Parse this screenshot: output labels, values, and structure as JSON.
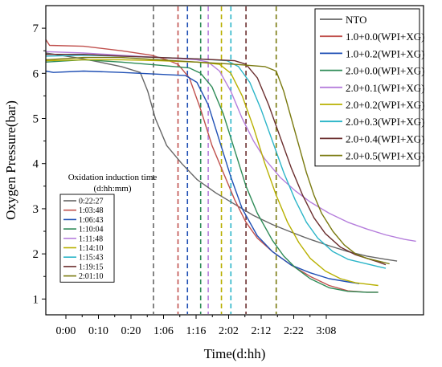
{
  "chart_data": {
    "type": "line",
    "xlabel": "Time(d:hh)",
    "ylabel": "Oxygen Pressure(bar)",
    "x_tick_labels": [
      "0:00",
      "0:10",
      "0:20",
      "1:06",
      "1:16",
      "2:02",
      "2:12",
      "2:22",
      "3:08"
    ],
    "y_ticks": [
      1,
      2,
      3,
      4,
      5,
      6,
      7
    ],
    "xlim": [
      0,
      100
    ],
    "ylim": [
      0.65,
      7.5
    ],
    "grid": false,
    "legend": {
      "placement": "top-right"
    },
    "inset_table": {
      "title_line1": "Oxidation induction time",
      "title_line2": "(d:hh:mm)",
      "rows": [
        {
          "label": "0:22:27",
          "color": "#666666"
        },
        {
          "label": "1:03:48",
          "color": "#c0504d"
        },
        {
          "label": "1:06:43",
          "color": "#1f4fb4"
        },
        {
          "label": "1:10:04",
          "color": "#2e8b57"
        },
        {
          "label": "1:11:48",
          "color": "#b57edc"
        },
        {
          "label": "1:14:10",
          "color": "#b8b000"
        },
        {
          "label": "1:15:43",
          "color": "#2bb5c8"
        },
        {
          "label": "1:19:15",
          "color": "#6b2f2f"
        },
        {
          "label": "2:01:10",
          "color": "#7a7a10"
        }
      ]
    },
    "series": [
      {
        "name": "NTO",
        "color": "#666666",
        "induction_x": 28.5,
        "points": [
          [
            0,
            6.45
          ],
          [
            10,
            6.32
          ],
          [
            20,
            6.15
          ],
          [
            25,
            6.02
          ],
          [
            27,
            5.6
          ],
          [
            29,
            5.0
          ],
          [
            32,
            4.4
          ],
          [
            36,
            4.0
          ],
          [
            40,
            3.65
          ],
          [
            45,
            3.35
          ],
          [
            50,
            3.1
          ],
          [
            55,
            2.85
          ],
          [
            60,
            2.65
          ],
          [
            65,
            2.48
          ],
          [
            70,
            2.32
          ],
          [
            75,
            2.18
          ],
          [
            80,
            2.05
          ],
          [
            85,
            1.95
          ],
          [
            90,
            1.88
          ],
          [
            93,
            1.84
          ]
        ]
      },
      {
        "name": "1.0+0.0(WPI+XG)",
        "color": "#c0504d",
        "induction_x": 35,
        "points": [
          [
            0,
            6.75
          ],
          [
            1,
            6.62
          ],
          [
            10,
            6.6
          ],
          [
            20,
            6.5
          ],
          [
            28,
            6.4
          ],
          [
            32,
            6.3
          ],
          [
            35,
            6.2
          ],
          [
            38,
            5.9
          ],
          [
            41,
            5.2
          ],
          [
            44,
            4.4
          ],
          [
            47,
            3.8
          ],
          [
            50,
            3.2
          ],
          [
            53,
            2.7
          ],
          [
            56,
            2.35
          ],
          [
            60,
            2.05
          ],
          [
            65,
            1.75
          ],
          [
            70,
            1.5
          ],
          [
            75,
            1.3
          ],
          [
            80,
            1.18
          ],
          [
            85,
            1.15
          ],
          [
            88,
            1.15
          ]
        ]
      },
      {
        "name": "1.0+0.2(WPI+XG)",
        "color": "#1f4fb4",
        "induction_x": 37.5,
        "points": [
          [
            0,
            6.05
          ],
          [
            2,
            6.02
          ],
          [
            10,
            6.05
          ],
          [
            20,
            6.02
          ],
          [
            30,
            5.98
          ],
          [
            37,
            5.95
          ],
          [
            40,
            5.8
          ],
          [
            43,
            5.3
          ],
          [
            46,
            4.5
          ],
          [
            49,
            3.7
          ],
          [
            52,
            3.0
          ],
          [
            56,
            2.4
          ],
          [
            60,
            2.05
          ],
          [
            65,
            1.75
          ],
          [
            70,
            1.58
          ],
          [
            75,
            1.45
          ],
          [
            80,
            1.38
          ],
          [
            83,
            1.34
          ]
        ]
      },
      {
        "name": "2.0+0.0(WPI+XG)",
        "color": "#2e8b57",
        "induction_x": 41,
        "points": [
          [
            0,
            6.25
          ],
          [
            10,
            6.3
          ],
          [
            20,
            6.25
          ],
          [
            30,
            6.18
          ],
          [
            38,
            6.12
          ],
          [
            41,
            6.0
          ],
          [
            44,
            5.7
          ],
          [
            47,
            5.1
          ],
          [
            50,
            4.3
          ],
          [
            53,
            3.5
          ],
          [
            56,
            2.9
          ],
          [
            60,
            2.3
          ],
          [
            63,
            1.95
          ],
          [
            66,
            1.7
          ],
          [
            70,
            1.45
          ],
          [
            75,
            1.25
          ],
          [
            80,
            1.17
          ],
          [
            85,
            1.15
          ],
          [
            88,
            1.15
          ]
        ]
      },
      {
        "name": "2.0+0.1(WPI+XG)",
        "color": "#b57edc",
        "induction_x": 43,
        "points": [
          [
            0,
            6.48
          ],
          [
            10,
            6.45
          ],
          [
            20,
            6.4
          ],
          [
            30,
            6.35
          ],
          [
            40,
            6.3
          ],
          [
            43,
            6.25
          ],
          [
            46,
            6.05
          ],
          [
            49,
            5.6
          ],
          [
            52,
            5.0
          ],
          [
            55,
            4.5
          ],
          [
            58,
            4.1
          ],
          [
            62,
            3.7
          ],
          [
            66,
            3.4
          ],
          [
            70,
            3.15
          ],
          [
            75,
            2.9
          ],
          [
            80,
            2.7
          ],
          [
            85,
            2.55
          ],
          [
            90,
            2.42
          ],
          [
            95,
            2.32
          ],
          [
            98,
            2.28
          ]
        ]
      },
      {
        "name": "2.0+0.2(WPI+XG)",
        "color": "#b8b000",
        "induction_x": 46.5,
        "points": [
          [
            0,
            6.28
          ],
          [
            10,
            6.3
          ],
          [
            20,
            6.3
          ],
          [
            30,
            6.28
          ],
          [
            40,
            6.25
          ],
          [
            46,
            6.2
          ],
          [
            49,
            6.0
          ],
          [
            52,
            5.5
          ],
          [
            55,
            4.8
          ],
          [
            58,
            4.0
          ],
          [
            61,
            3.3
          ],
          [
            64,
            2.7
          ],
          [
            67,
            2.25
          ],
          [
            70,
            1.9
          ],
          [
            74,
            1.62
          ],
          [
            78,
            1.45
          ],
          [
            82,
            1.36
          ],
          [
            85,
            1.33
          ],
          [
            88,
            1.3
          ]
        ]
      },
      {
        "name": "2.0+0.3(WPI+XG)",
        "color": "#2bb5c8",
        "induction_x": 49,
        "points": [
          [
            0,
            6.38
          ],
          [
            10,
            6.4
          ],
          [
            20,
            6.38
          ],
          [
            30,
            6.35
          ],
          [
            40,
            6.32
          ],
          [
            48,
            6.28
          ],
          [
            51,
            6.15
          ],
          [
            54,
            5.8
          ],
          [
            57,
            5.2
          ],
          [
            60,
            4.5
          ],
          [
            63,
            3.8
          ],
          [
            66,
            3.2
          ],
          [
            69,
            2.7
          ],
          [
            72,
            2.35
          ],
          [
            76,
            2.05
          ],
          [
            80,
            1.88
          ],
          [
            84,
            1.8
          ],
          [
            88,
            1.72
          ],
          [
            90,
            1.68
          ]
        ]
      },
      {
        "name": "2.0+0.4(WPI+XG)",
        "color": "#6b2f2f",
        "induction_x": 53,
        "points": [
          [
            0,
            6.42
          ],
          [
            10,
            6.42
          ],
          [
            20,
            6.38
          ],
          [
            30,
            6.35
          ],
          [
            40,
            6.32
          ],
          [
            50,
            6.28
          ],
          [
            53,
            6.2
          ],
          [
            56,
            5.9
          ],
          [
            59,
            5.3
          ],
          [
            62,
            4.6
          ],
          [
            65,
            3.9
          ],
          [
            68,
            3.3
          ],
          [
            71,
            2.8
          ],
          [
            74,
            2.45
          ],
          [
            78,
            2.15
          ],
          [
            82,
            1.98
          ],
          [
            85,
            1.9
          ],
          [
            88,
            1.82
          ],
          [
            90,
            1.76
          ]
        ]
      },
      {
        "name": "2.0+0.5(WPI+XG)",
        "color": "#7a7a10",
        "induction_x": 61,
        "points": [
          [
            0,
            6.3
          ],
          [
            10,
            6.35
          ],
          [
            20,
            6.35
          ],
          [
            30,
            6.3
          ],
          [
            40,
            6.25
          ],
          [
            50,
            6.2
          ],
          [
            58,
            6.15
          ],
          [
            61,
            6.05
          ],
          [
            63,
            5.6
          ],
          [
            65,
            5.0
          ],
          [
            67,
            4.4
          ],
          [
            69,
            3.8
          ],
          [
            71,
            3.3
          ],
          [
            73,
            2.9
          ],
          [
            76,
            2.5
          ],
          [
            79,
            2.2
          ],
          [
            82,
            2.0
          ],
          [
            85,
            1.9
          ],
          [
            89,
            1.82
          ],
          [
            91,
            1.78
          ]
        ]
      }
    ]
  }
}
